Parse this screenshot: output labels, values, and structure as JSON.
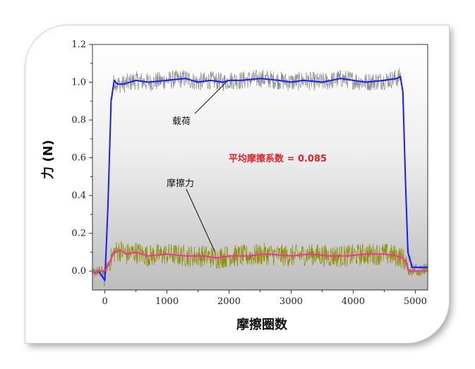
{
  "chart_data": {
    "type": "line",
    "xlabel": "摩擦圈数",
    "ylabel": "力 (N)",
    "xlim": [
      -200,
      5200
    ],
    "ylim": [
      -0.1,
      1.2
    ],
    "xticks": [
      0,
      1000,
      2000,
      3000,
      4000,
      5000
    ],
    "yticks": [
      0.0,
      0.2,
      0.4,
      0.6,
      0.8,
      1.0,
      1.2
    ],
    "xtick_labels": [
      "0",
      "1000",
      "2000",
      "3000",
      "4000",
      "5000"
    ],
    "ytick_labels": [
      "0.0",
      "0.2",
      "0.4",
      "0.6",
      "0.8",
      "1.0",
      "1.2"
    ],
    "annotation_load": "载荷",
    "annotation_friction": "摩擦力",
    "coefficient_text": "平均摩擦系数 = 0.085",
    "colors": {
      "load_raw": "#8a8a8a",
      "load_smooth": "#1a1aff",
      "friction_raw": "#8c8c00",
      "friction_smooth": "#ff2aa8",
      "coefficient": "#e8222a"
    },
    "series": [
      {
        "role": "load-smoothed",
        "x": [
          -200,
          -100,
          0,
          50,
          100,
          150,
          200,
          300,
          500,
          700,
          1000,
          1300,
          1500,
          1700,
          1900,
          2000,
          2200,
          2500,
          2800,
          3000,
          3200,
          3500,
          3800,
          4000,
          4200,
          4500,
          4700,
          4760,
          4800,
          4840,
          4880,
          4950,
          5050,
          5200
        ],
        "y": [
          -0.01,
          0.0,
          -0.05,
          0.35,
          0.9,
          1.01,
          0.99,
          0.99,
          1.01,
          1.0,
          1.01,
          1.02,
          1.0,
          1.01,
          1.0,
          1.01,
          1.01,
          1.02,
          1.01,
          1.0,
          1.01,
          1.0,
          1.02,
          1.01,
          1.0,
          1.01,
          1.02,
          1.03,
          0.95,
          0.5,
          0.1,
          0.02,
          0.02,
          0.02
        ]
      },
      {
        "role": "friction-smoothed",
        "x": [
          -200,
          -100,
          0,
          50,
          150,
          250,
          350,
          500,
          700,
          1000,
          1300,
          1600,
          1800,
          2000,
          2300,
          2600,
          3000,
          3300,
          3600,
          3900,
          4200,
          4500,
          4700,
          4800,
          4850,
          4900,
          5000,
          5200
        ],
        "y": [
          -0.01,
          0.0,
          0.0,
          0.03,
          0.1,
          0.11,
          0.09,
          0.1,
          0.08,
          0.09,
          0.08,
          0.08,
          0.07,
          0.08,
          0.08,
          0.09,
          0.08,
          0.09,
          0.08,
          0.08,
          0.09,
          0.09,
          0.08,
          0.07,
          0.04,
          0.0,
          0.0,
          0.0
        ]
      }
    ]
  }
}
